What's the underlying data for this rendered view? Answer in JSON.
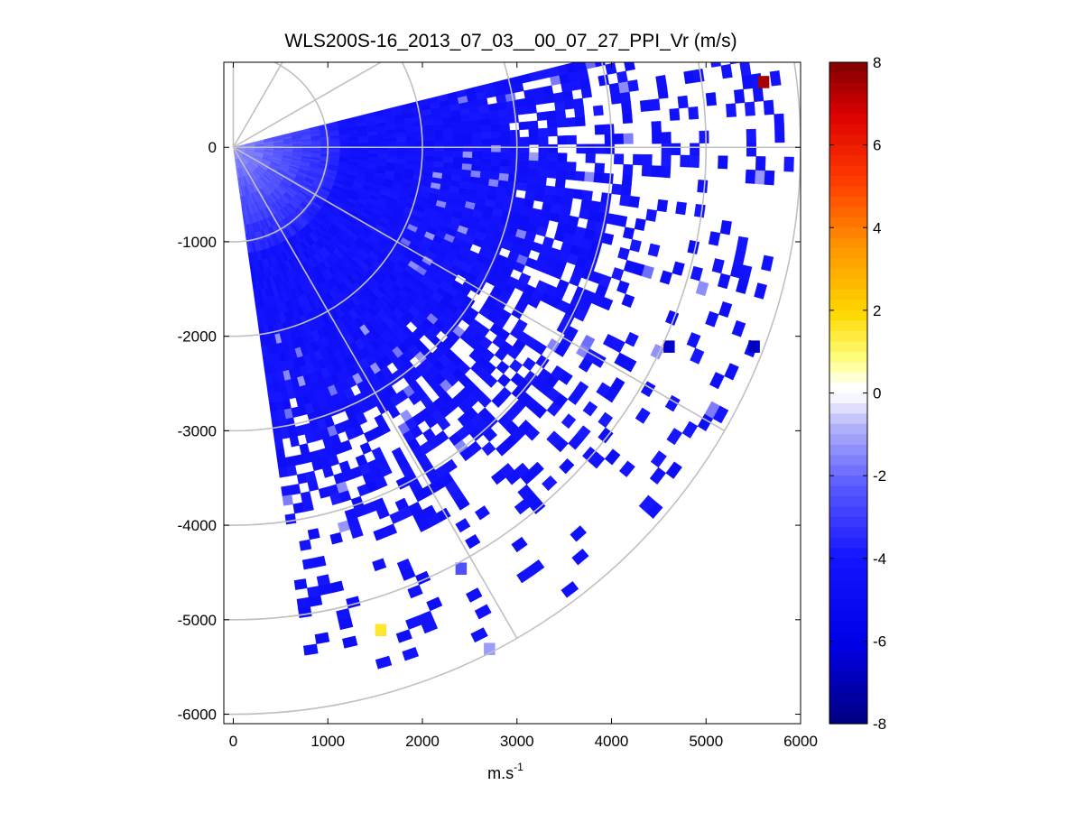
{
  "chart_data": {
    "type": "heatmap",
    "subtype": "ppi-polar-sector",
    "title": "WLS200S-16_2013_07_03__00_07_27_PPI_Vr (m/s)",
    "xlabel_base": "m.s",
    "xlabel_sup": "-1",
    "ylabel": "",
    "xlim": [
      -100,
      6000
    ],
    "ylim": [
      -6100,
      900
    ],
    "xticks": [
      0,
      1000,
      2000,
      3000,
      4000,
      5000,
      6000
    ],
    "yticks": [
      0,
      -1000,
      -2000,
      -3000,
      -4000,
      -5000,
      -6000
    ],
    "colorbar": {
      "min": -8,
      "max": 8,
      "ticks": [
        8,
        6,
        4,
        2,
        0,
        -2,
        -4,
        -6,
        -8
      ]
    },
    "azimuth_range_deg": [
      -82,
      14
    ],
    "range_max_m": 5900,
    "range_rings_m": [
      1000,
      2000,
      3000,
      4000,
      5000,
      6000
    ],
    "spoke_angles_deg": [
      90,
      60,
      30,
      0,
      -30,
      -60
    ],
    "field_summary": "Radial velocity mostly -3.5 to -5 m/s; weaker (-1 to -2.5 m/s) near the scanner; isolated outliers: +7.5 m/s near x=5600,y=700 and +1.5 m/s near x=1550,y=-5100; scattered gaps beyond ~3000 m.",
    "notable_cells": [
      {
        "x": 5600,
        "y": 700,
        "value": 7.5
      },
      {
        "x": 1550,
        "y": -5100,
        "value": 1.5
      },
      {
        "x": 5500,
        "y": -2100,
        "value": -6.8
      },
      {
        "x": 4600,
        "y": -2100,
        "value": -6.5
      },
      {
        "x": 2700,
        "y": -5300,
        "value": -1.2
      },
      {
        "x": 2400,
        "y": -4450,
        "value": -2.5
      }
    ]
  }
}
